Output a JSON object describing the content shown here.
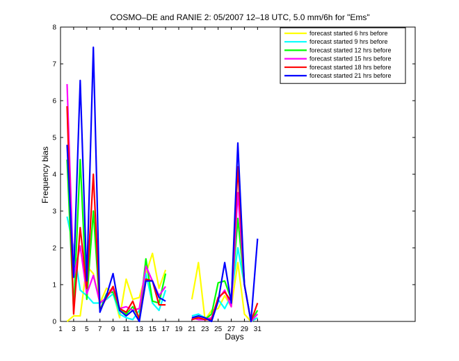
{
  "chart_data": {
    "type": "line",
    "title": "COSMO–DE and RANIE 2: 05/2007 12–18 UTC, 5.0 mm/6h for \"Ems\"",
    "xlabel": "Days",
    "ylabel": "Frequency bias",
    "xlim": [
      1,
      55
    ],
    "ylim": [
      0,
      8
    ],
    "xticks": [
      1,
      3,
      5,
      7,
      9,
      11,
      13,
      15,
      17,
      19,
      21,
      23,
      25,
      27,
      29,
      31
    ],
    "yticks": [
      0,
      1,
      2,
      3,
      4,
      5,
      6,
      7,
      8
    ],
    "legend_position": "top-right",
    "grid": false,
    "series": [
      {
        "name": "forecast started 6 hrs before",
        "color": "#ffff00",
        "x": [
          2,
          3,
          4,
          5,
          6,
          7,
          8,
          9,
          10,
          11,
          12,
          13,
          14,
          15,
          16,
          17,
          null,
          21,
          22,
          23,
          24,
          25,
          26,
          27,
          28,
          29,
          30,
          31
        ],
        "y": [
          0.0,
          0.15,
          0.15,
          1.5,
          1.3,
          0.5,
          0.9,
          0.8,
          0.1,
          1.15,
          0.6,
          0.65,
          1.3,
          1.85,
          0.9,
          1.4,
          null,
          0.6,
          1.6,
          0.05,
          0.3,
          0.35,
          0.7,
          0.4,
          1.6,
          0.2,
          0.0,
          0.1
        ]
      },
      {
        "name": "forecast started 9 hrs before",
        "color": "#00ffff",
        "x": [
          2,
          3,
          4,
          5,
          6,
          7,
          8,
          9,
          10,
          11,
          12,
          13,
          14,
          15,
          16,
          17,
          null,
          21,
          22,
          23,
          24,
          25,
          26,
          27,
          28,
          29,
          30,
          31
        ],
        "y": [
          2.85,
          2.0,
          0.85,
          0.7,
          0.5,
          0.5,
          0.6,
          0.75,
          0.2,
          0.1,
          0.05,
          0.3,
          1.3,
          0.5,
          0.3,
          0.85,
          null,
          0.15,
          0.2,
          0.1,
          0.05,
          0.6,
          0.35,
          0.7,
          2.0,
          1.0,
          0.0,
          0.1
        ]
      },
      {
        "name": "forecast started 12 hrs before",
        "color": "#00ff00",
        "x": [
          2,
          3,
          4,
          5,
          6,
          7,
          8,
          9,
          10,
          11,
          12,
          13,
          14,
          15,
          16,
          17,
          null,
          21,
          22,
          23,
          24,
          25,
          26,
          27,
          28,
          29,
          30,
          31
        ],
        "y": [
          4.4,
          0.3,
          4.4,
          0.6,
          3.0,
          0.3,
          0.75,
          0.8,
          0.3,
          0.2,
          0.4,
          0.1,
          1.7,
          0.55,
          0.5,
          1.3,
          null,
          0.1,
          0.1,
          0.05,
          0.2,
          1.05,
          1.1,
          0.6,
          2.8,
          1.0,
          0.0,
          0.3
        ]
      },
      {
        "name": "forecast started 15 hrs before",
        "color": "#ff00ff",
        "x": [
          2,
          3,
          4,
          5,
          6,
          7,
          8,
          9,
          10,
          11,
          12,
          13,
          14,
          15,
          16,
          17,
          null,
          21,
          22,
          23,
          24,
          25,
          26,
          27,
          28,
          29,
          30,
          31
        ],
        "y": [
          6.45,
          1.2,
          2.05,
          0.75,
          1.25,
          0.5,
          0.65,
          0.9,
          0.35,
          0.4,
          0.3,
          0.35,
          1.5,
          1.1,
          0.7,
          0.95,
          null,
          0.1,
          0.05,
          0.05,
          0.1,
          0.6,
          0.85,
          0.4,
          3.5,
          1.0,
          0.0,
          0.2
        ]
      },
      {
        "name": "forecast started 18 hrs before",
        "color": "#ff0000",
        "x": [
          2,
          3,
          4,
          5,
          6,
          7,
          8,
          9,
          10,
          11,
          12,
          13,
          14,
          15,
          16,
          17,
          null,
          21,
          22,
          23,
          24,
          25,
          26,
          27,
          28,
          29,
          30,
          31
        ],
        "y": [
          5.85,
          0.2,
          2.55,
          0.9,
          4.0,
          0.3,
          0.65,
          0.95,
          0.35,
          0.25,
          0.55,
          0.05,
          1.15,
          1.1,
          0.45,
          0.45,
          null,
          0.05,
          0.1,
          0.05,
          0.05,
          0.65,
          0.8,
          0.55,
          4.2,
          1.0,
          0.0,
          0.5
        ]
      },
      {
        "name": "forecast started 21 hrs before",
        "color": "#0000ff",
        "x": [
          2,
          3,
          4,
          5,
          6,
          7,
          8,
          9,
          10,
          11,
          12,
          13,
          14,
          15,
          16,
          17,
          null,
          21,
          22,
          23,
          24,
          25,
          26,
          27,
          28,
          29,
          30,
          31
        ],
        "y": [
          4.8,
          1.2,
          6.55,
          1.1,
          7.45,
          0.25,
          0.7,
          1.3,
          0.3,
          0.15,
          0.3,
          0.0,
          1.1,
          1.1,
          0.65,
          0.55,
          null,
          0.1,
          0.15,
          0.1,
          0.0,
          0.55,
          1.6,
          0.5,
          4.85,
          1.0,
          0.0,
          2.25
        ]
      }
    ]
  }
}
